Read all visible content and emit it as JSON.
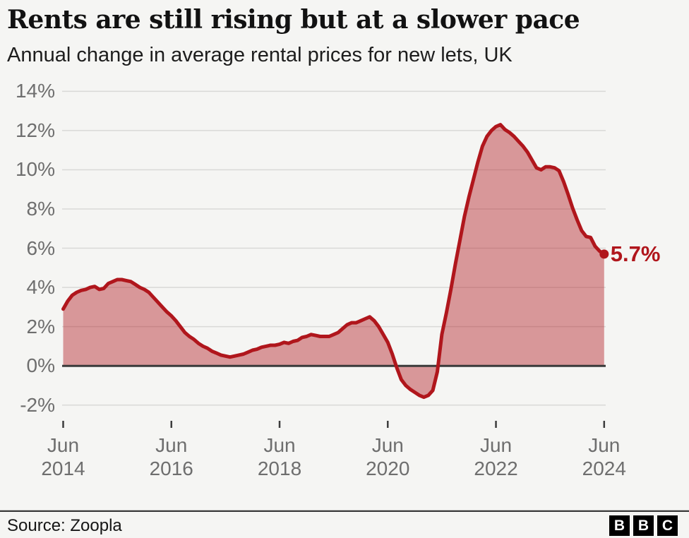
{
  "header": {
    "title": "Rents are still rising but at a slower pace",
    "subtitle": "Annual change in average rental prices for new lets, UK"
  },
  "footer": {
    "source": "Source: Zoopla",
    "logo_letters": [
      "B",
      "B",
      "C"
    ]
  },
  "colors": {
    "background": "#f5f5f3",
    "line": "#b0161c",
    "fill": "rgba(176,22,28,0.42)",
    "grid": "#d9d9d7",
    "zero_line": "#3a3a3a",
    "tick": "#3d3d3d",
    "axis_text": "#6e6e6e",
    "accent_text": "#b0161c"
  },
  "chart_data": {
    "type": "area",
    "title": "Rents are still rising but at a slower pace",
    "subtitle": "Annual change in average rental prices for new lets, UK",
    "unit": "%",
    "frequency": "monthly",
    "start": "Jun 2014",
    "end": "Jun 2024",
    "grid": true,
    "ylim": [
      -2.8,
      14.6
    ],
    "y_ticks": [
      {
        "v": 14,
        "label": "14%"
      },
      {
        "v": 12,
        "label": "12%"
      },
      {
        "v": 10,
        "label": "10%"
      },
      {
        "v": 8,
        "label": "8%"
      },
      {
        "v": 6,
        "label": "6%"
      },
      {
        "v": 4,
        "label": "4%"
      },
      {
        "v": 2,
        "label": "2%"
      },
      {
        "v": 0,
        "label": "0%"
      },
      {
        "v": -2,
        "label": "-2%"
      }
    ],
    "x_ticks": [
      {
        "m": 0,
        "month": "Jun",
        "year": "2014"
      },
      {
        "m": 24,
        "month": "Jun",
        "year": "2016"
      },
      {
        "m": 48,
        "month": "Jun",
        "year": "2018"
      },
      {
        "m": 72,
        "month": "Jun",
        "year": "2020"
      },
      {
        "m": 96,
        "month": "Jun",
        "year": "2022"
      },
      {
        "m": 120,
        "month": "Jun",
        "year": "2024"
      }
    ],
    "latest": {
      "date": "Jun 2024",
      "value": 5.7,
      "label": "5.7%"
    },
    "values": [
      2.9,
      3.3,
      3.6,
      3.75,
      3.85,
      3.9,
      4.0,
      4.05,
      3.9,
      3.95,
      4.2,
      4.3,
      4.4,
      4.4,
      4.35,
      4.3,
      4.15,
      4.0,
      3.9,
      3.75,
      3.5,
      3.25,
      3.0,
      2.75,
      2.55,
      2.3,
      2.0,
      1.7,
      1.5,
      1.35,
      1.15,
      1.0,
      0.9,
      0.75,
      0.65,
      0.55,
      0.5,
      0.45,
      0.5,
      0.55,
      0.6,
      0.7,
      0.8,
      0.85,
      0.95,
      1.0,
      1.05,
      1.05,
      1.1,
      1.2,
      1.15,
      1.25,
      1.3,
      1.45,
      1.5,
      1.6,
      1.55,
      1.5,
      1.5,
      1.5,
      1.6,
      1.7,
      1.9,
      2.1,
      2.2,
      2.2,
      2.3,
      2.4,
      2.5,
      2.3,
      2.0,
      1.6,
      1.2,
      0.6,
      -0.1,
      -0.7,
      -1.0,
      -1.2,
      -1.35,
      -1.5,
      -1.6,
      -1.5,
      -1.25,
      -0.3,
      1.6,
      2.7,
      3.9,
      5.2,
      6.4,
      7.6,
      8.6,
      9.5,
      10.4,
      11.2,
      11.7,
      12.0,
      12.2,
      12.3,
      12.05,
      11.9,
      11.7,
      11.45,
      11.2,
      10.9,
      10.5,
      10.1,
      10.0,
      10.15,
      10.15,
      10.1,
      9.95,
      9.4,
      8.75,
      8.05,
      7.45,
      6.9,
      6.6,
      6.55,
      6.1,
      5.85,
      5.7
    ]
  }
}
